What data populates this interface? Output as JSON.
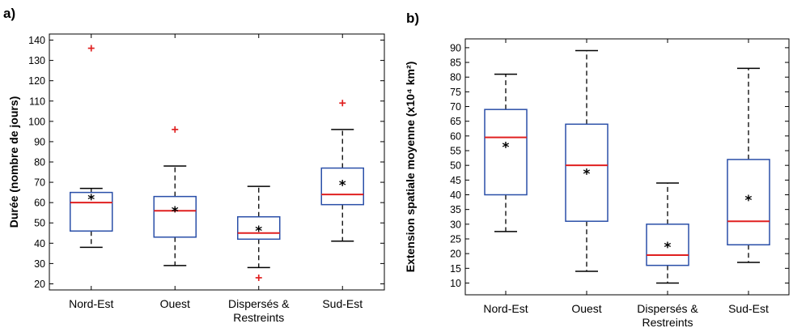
{
  "chart_data": [
    {
      "panel_label": "a)",
      "type": "box",
      "categories": [
        "Nord-Est",
        "Ouest",
        "Dispersés &\nRestreints",
        "Sud-Est"
      ],
      "ylabel": "Durée (nombre de jours)",
      "ylim": [
        17,
        143
      ],
      "yticks": [
        20,
        30,
        40,
        50,
        60,
        70,
        80,
        90,
        100,
        110,
        120,
        130,
        140
      ],
      "boxes": [
        {
          "whisker_low": 38,
          "q1": 46,
          "median": 60,
          "q3": 65,
          "whisker_high": 67,
          "mean": 62,
          "outliers": [
            136
          ]
        },
        {
          "whisker_low": 29,
          "q1": 43,
          "median": 56,
          "q3": 63,
          "whisker_high": 78,
          "mean": 56,
          "outliers": [
            96
          ]
        },
        {
          "whisker_low": 28,
          "q1": 42,
          "median": 45,
          "q3": 53,
          "whisker_high": 68,
          "mean": 46.5,
          "outliers": [
            23
          ]
        },
        {
          "whisker_low": 41,
          "q1": 59,
          "median": 64,
          "q3": 77,
          "whisker_high": 96,
          "mean": 69,
          "outliers": [
            109
          ]
        }
      ],
      "colors": {
        "box": "#2a4fa8",
        "median": "#e02020",
        "outlier": "#e02020",
        "mean": "#000000",
        "whisker": "#000000"
      }
    },
    {
      "panel_label": "b)",
      "type": "box",
      "categories": [
        "Nord-Est",
        "Ouest",
        "Dispersés &\nRestreints",
        "Sud-Est"
      ],
      "ylabel": "Extension spatiale moyenne  (x10⁴ km²)",
      "ylim": [
        6,
        93
      ],
      "yticks": [
        10,
        15,
        20,
        25,
        30,
        35,
        40,
        45,
        50,
        55,
        60,
        65,
        70,
        75,
        80,
        85,
        90
      ],
      "boxes": [
        {
          "whisker_low": 27.5,
          "q1": 40,
          "median": 59.5,
          "q3": 69,
          "whisker_high": 81,
          "mean": 56.5,
          "outliers": []
        },
        {
          "whisker_low": 14,
          "q1": 31,
          "median": 50,
          "q3": 64,
          "whisker_high": 89,
          "mean": 47.5,
          "outliers": []
        },
        {
          "whisker_low": 10,
          "q1": 16,
          "median": 19.5,
          "q3": 30,
          "whisker_high": 44,
          "mean": 22.5,
          "outliers": []
        },
        {
          "whisker_low": 17,
          "q1": 23,
          "median": 31,
          "q3": 52,
          "whisker_high": 83,
          "mean": 38.5,
          "outliers": []
        }
      ],
      "colors": {
        "box": "#2a4fa8",
        "median": "#e02020",
        "outlier": "#e02020",
        "mean": "#000000",
        "whisker": "#000000"
      }
    }
  ]
}
